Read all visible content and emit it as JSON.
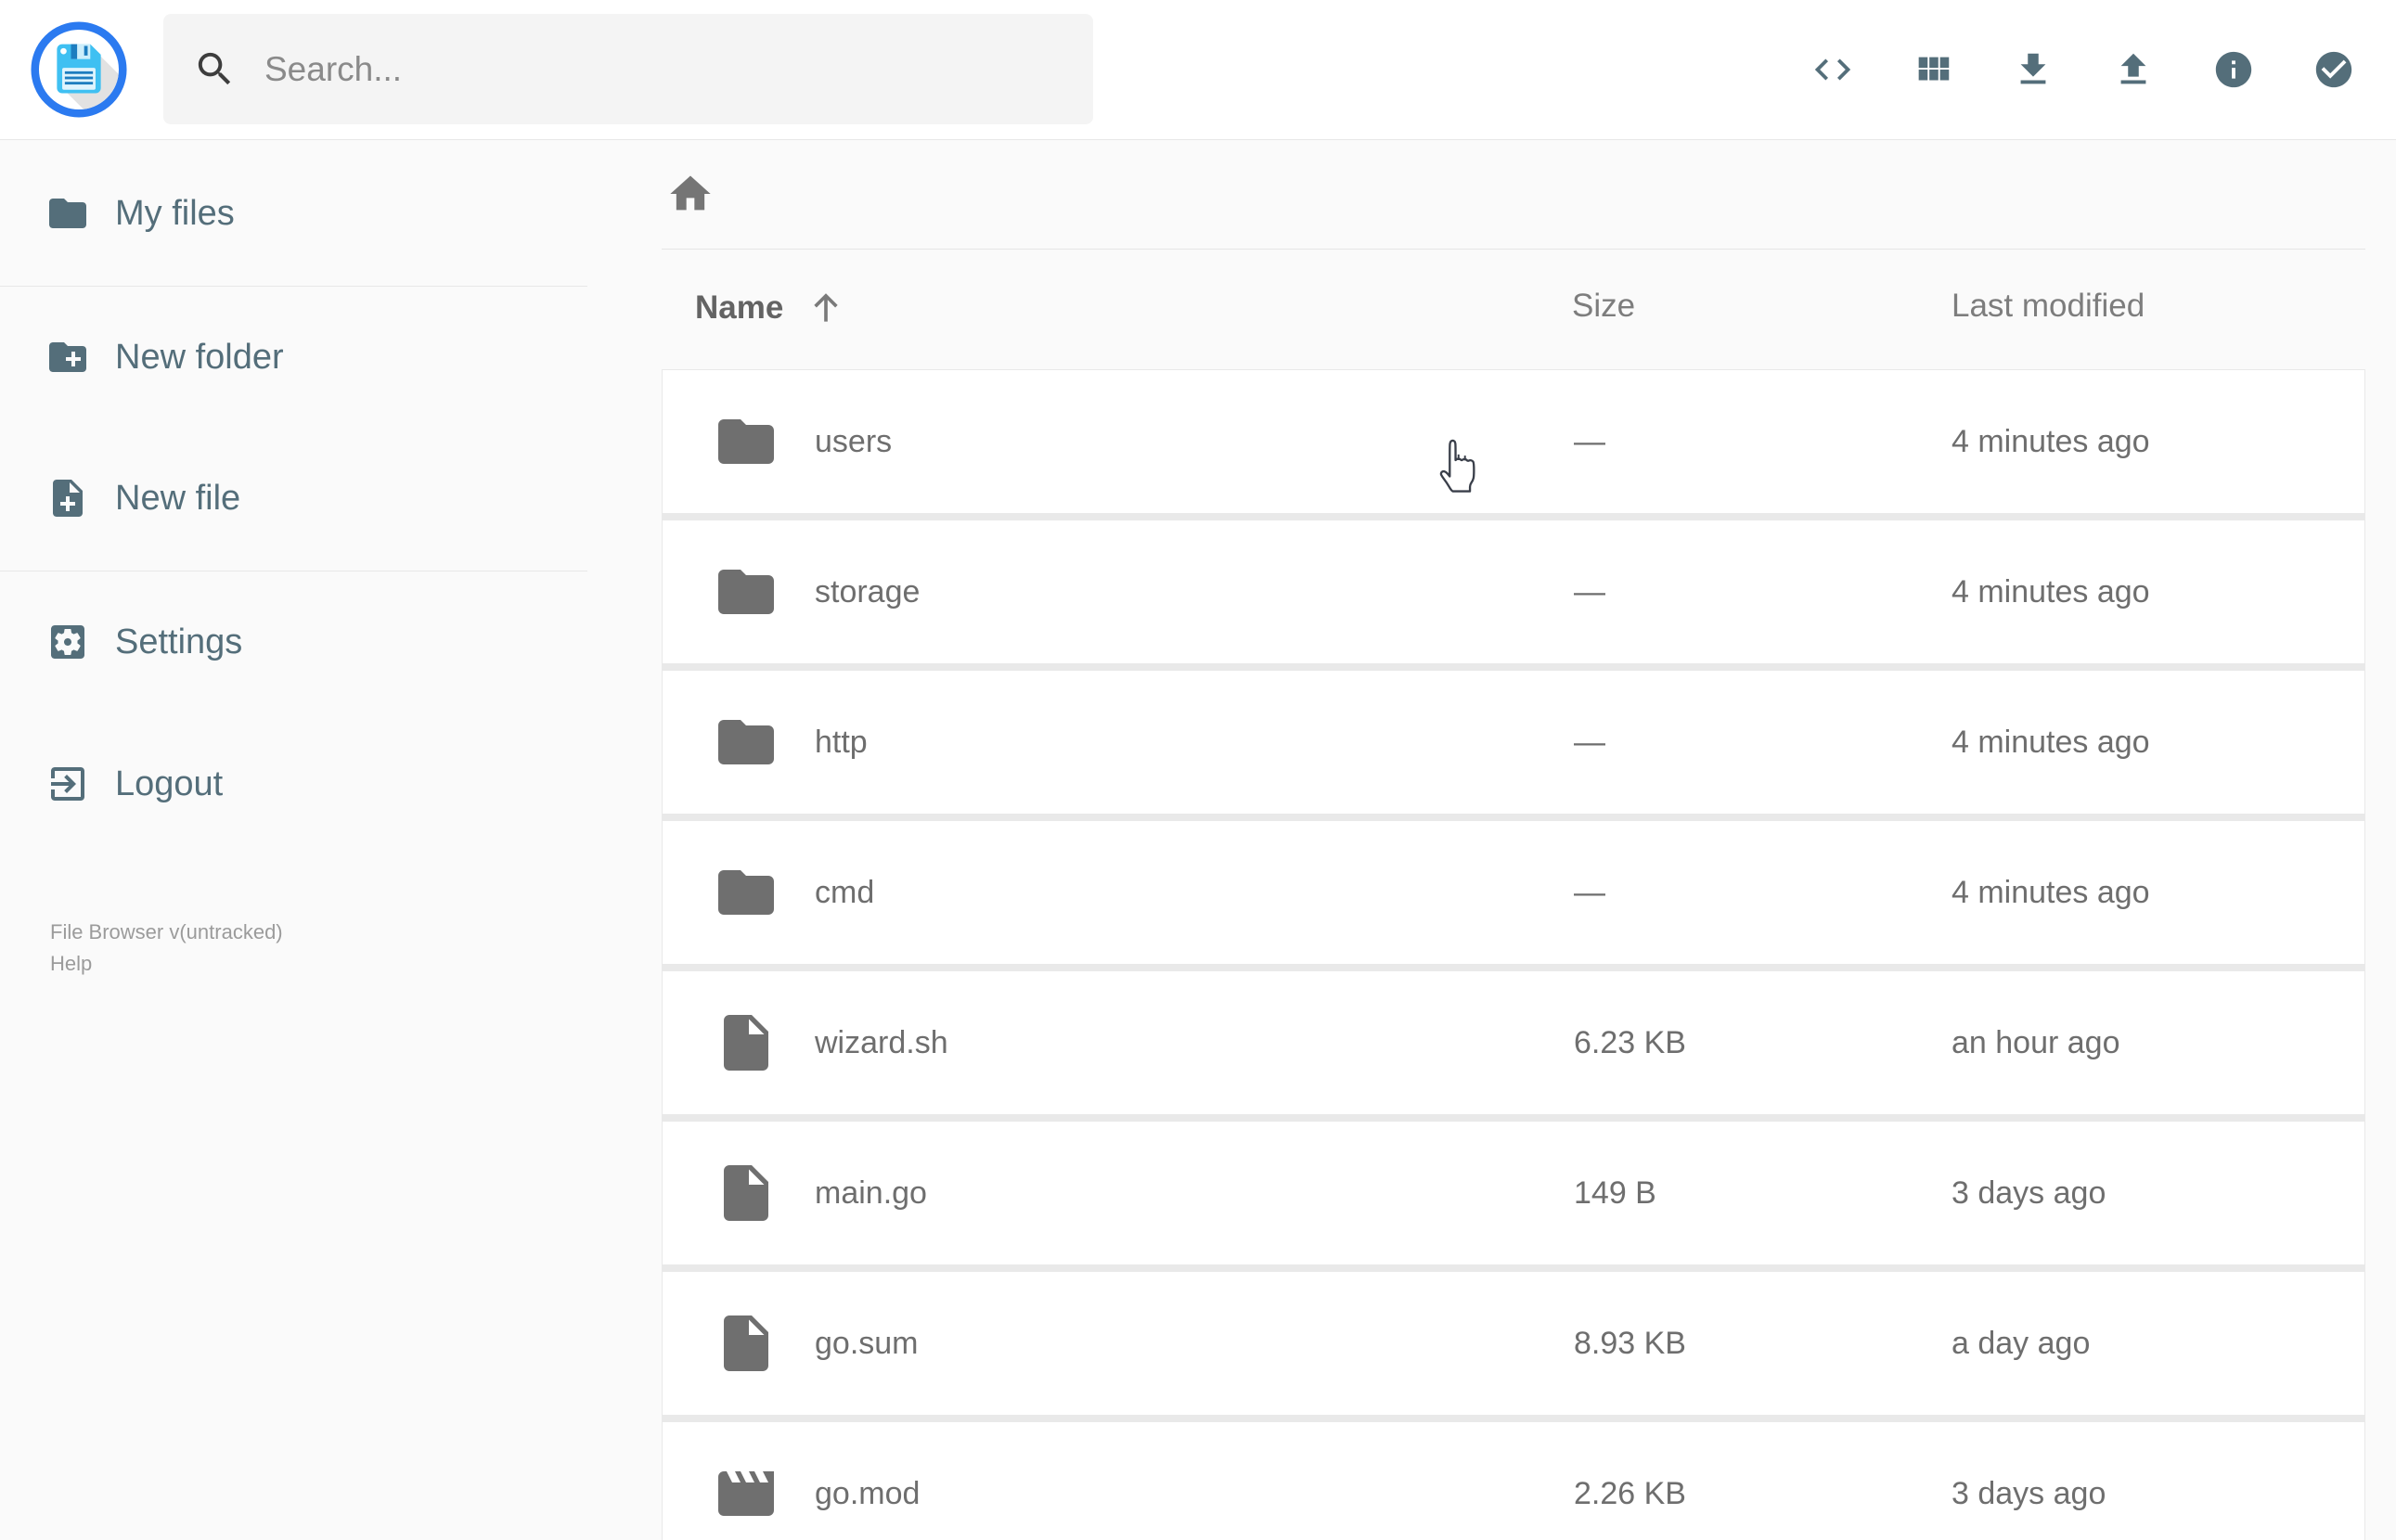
{
  "header": {
    "search": {
      "placeholder": "Search...",
      "icon": "search"
    },
    "logo_icon": "floppy-disk",
    "actions": [
      {
        "name": "raw-view-button",
        "icon": "code"
      },
      {
        "name": "switch-view-button",
        "icon": "grid"
      },
      {
        "name": "download-button",
        "icon": "download"
      },
      {
        "name": "upload-button",
        "icon": "upload"
      },
      {
        "name": "info-button",
        "icon": "info"
      },
      {
        "name": "select-multiple-button",
        "icon": "check-circle"
      }
    ]
  },
  "sidebar": {
    "items": [
      {
        "id": "my-files",
        "label": "My files",
        "icon": "folder"
      },
      {
        "divider": true
      },
      {
        "id": "new-folder",
        "label": "New folder",
        "icon": "folder-plus"
      },
      {
        "id": "new-file",
        "label": "New file",
        "icon": "file-plus"
      },
      {
        "divider": true
      },
      {
        "id": "settings",
        "label": "Settings",
        "icon": "settings"
      },
      {
        "id": "logout",
        "label": "Logout",
        "icon": "logout"
      }
    ],
    "footer": {
      "version": "File Browser v(untracked)",
      "help": "Help"
    }
  },
  "breadcrumb": {
    "home_icon": "home"
  },
  "listing": {
    "columns": {
      "name": "Name",
      "size": "Size",
      "modified": "Last modified"
    },
    "sort": {
      "column": "name",
      "direction": "ascending",
      "icon": "arrow-up"
    },
    "rows": [
      {
        "name": "users",
        "icon": "folder",
        "size": "—",
        "modified": "4 minutes ago"
      },
      {
        "name": "storage",
        "icon": "folder",
        "size": "—",
        "modified": "4 minutes ago"
      },
      {
        "name": "http",
        "icon": "folder",
        "size": "—",
        "modified": "4 minutes ago"
      },
      {
        "name": "cmd",
        "icon": "folder",
        "size": "—",
        "modified": "4 minutes ago"
      },
      {
        "name": "wizard.sh",
        "icon": "file",
        "size": "6.23 KB",
        "modified": "an hour ago"
      },
      {
        "name": "main.go",
        "icon": "file",
        "size": "149 B",
        "modified": "3 days ago"
      },
      {
        "name": "go.sum",
        "icon": "file",
        "size": "8.93 KB",
        "modified": "a day ago"
      },
      {
        "name": "go.mod",
        "icon": "movie",
        "size": "2.26 KB",
        "modified": "3 days ago"
      }
    ]
  },
  "colors": {
    "accent_blue": "#2b7af0",
    "logo_floppy_blue": "#3fc0f2",
    "icon_slate": "#546e7a",
    "icon_gray": "#6f6f6f",
    "row_text": "#6e6e6e",
    "page_bg": "#fafafa",
    "row_bg": "#ffffff",
    "border": "#e8e8e8",
    "search_bg": "#f4f4f4",
    "footer_text": "#9b9b9b"
  }
}
